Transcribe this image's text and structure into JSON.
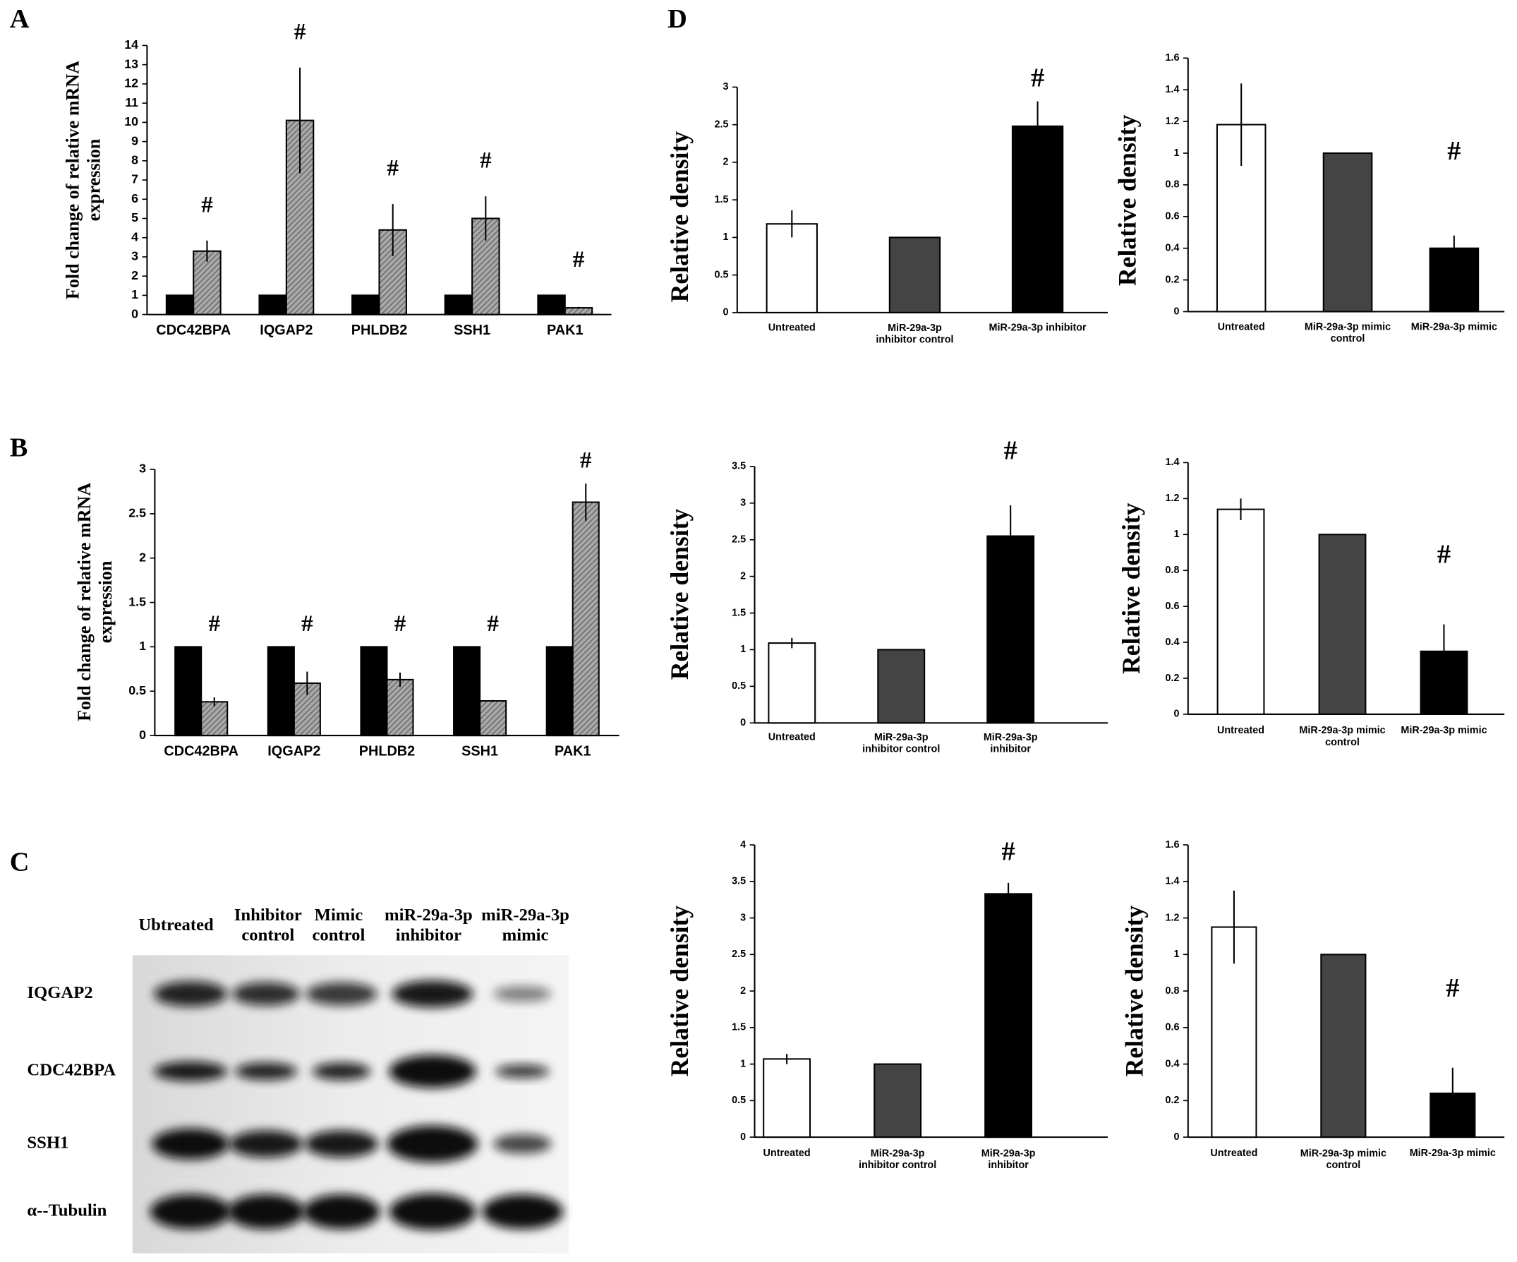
{
  "chart_data": [
    {
      "type": "bar",
      "panel_label": "A",
      "y_label": "Fold change of relative mRNA\nexpression",
      "categories": [
        "CDC42BPA",
        "IQGAP2",
        "PHLDB2",
        "SSH1",
        "PAK1"
      ],
      "series": [
        {
          "color": "#000000",
          "values": [
            1,
            1,
            1,
            1,
            1
          ]
        },
        {
          "color": "#a8a8a8",
          "pattern": "hatch",
          "values": [
            3.3,
            10.1,
            4.4,
            5.0,
            0.35
          ],
          "errors": [
            0.55,
            2.75,
            1.35,
            1.15,
            0.05
          ]
        }
      ],
      "annotations": [
        "#",
        "#",
        "#",
        "#",
        "#"
      ],
      "ylim": [
        0,
        14
      ],
      "yticks": [
        0,
        1,
        2,
        3,
        4,
        5,
        6,
        7,
        8,
        9,
        10,
        11,
        12,
        13,
        14
      ]
    },
    {
      "type": "bar",
      "panel_label": "B",
      "y_label": "Fold change of relative mRNA\nexpression",
      "categories": [
        "CDC42BPA",
        "IQGAP2",
        "PHLDB2",
        "SSH1",
        "PAK1"
      ],
      "series": [
        {
          "color": "#000000",
          "values": [
            1,
            1,
            1,
            1,
            1
          ]
        },
        {
          "color": "#a8a8a8",
          "pattern": "hatch",
          "values": [
            0.38,
            0.59,
            0.63,
            0.39,
            2.63
          ],
          "errors": [
            0.05,
            0.13,
            0.08,
            0.01,
            0.21
          ]
        }
      ],
      "annotations": [
        "#",
        "#",
        "#",
        "#",
        "#"
      ],
      "ylim": [
        0,
        3
      ],
      "yticks": [
        0,
        0.5,
        1,
        1.5,
        2,
        2.5,
        3
      ]
    },
    {
      "type": "bar",
      "panel_label": "D",
      "y_label": "Relative density",
      "categories": [
        "Untreated",
        "MiR-29a-3p\ninhibitor control",
        "MiR-29a-3p inhibitor"
      ],
      "values": [
        1.18,
        1,
        2.48
      ],
      "errors": [
        0.18,
        null,
        0.33
      ],
      "colors": [
        "#ffffff",
        "#444444",
        "#000000"
      ],
      "annotations": [
        null,
        null,
        "#"
      ],
      "ylim": [
        0,
        3
      ],
      "yticks": [
        0,
        0.5,
        1,
        1.5,
        2,
        2.5,
        3
      ]
    },
    {
      "type": "bar",
      "y_label": "Relative density",
      "categories": [
        "Untreated",
        "MiR-29a-3p mimic\ncontrol",
        "MiR-29a-3p mimic"
      ],
      "values": [
        1.18,
        1,
        0.4
      ],
      "errors": [
        0.26,
        null,
        0.08
      ],
      "colors": [
        "#ffffff",
        "#444444",
        "#000000"
      ],
      "annotations": [
        null,
        null,
        "#"
      ],
      "ylim": [
        0,
        1.6
      ],
      "yticks": [
        0,
        0.2,
        0.4,
        0.6,
        0.8,
        1,
        1.2,
        1.4,
        1.6
      ]
    },
    {
      "type": "bar",
      "y_label": "Relative density",
      "categories": [
        "Untreated",
        "MiR-29a-3p\ninhibitor control",
        "MiR-29a-3p\ninhibitor"
      ],
      "values": [
        1.09,
        1,
        2.55
      ],
      "errors": [
        0.07,
        null,
        0.42
      ],
      "colors": [
        "#ffffff",
        "#444444",
        "#000000"
      ],
      "annotations": [
        null,
        null,
        "#"
      ],
      "ylim": [
        0,
        3.5
      ],
      "yticks": [
        0,
        0.5,
        1,
        1.5,
        2,
        2.5,
        3,
        3.5
      ]
    },
    {
      "type": "bar",
      "y_label": "Relative density",
      "categories": [
        "Untreated",
        "MiR-29a-3p mimic\ncontrol",
        "MiR-29a-3p mimic"
      ],
      "values": [
        1.14,
        1,
        0.35
      ],
      "errors": [
        0.06,
        null,
        0.15
      ],
      "colors": [
        "#ffffff",
        "#444444",
        "#000000"
      ],
      "annotations": [
        null,
        null,
        "#"
      ],
      "ylim": [
        0,
        1.4
      ],
      "yticks": [
        0,
        0.2,
        0.4,
        0.6,
        0.8,
        1,
        1.2,
        1.4
      ]
    },
    {
      "type": "bar",
      "y_label": "Relative density",
      "categories": [
        "Untreated",
        "MiR-29a-3p\ninhibitor control",
        "MiR-29a-3p\ninhibitor"
      ],
      "values": [
        1.07,
        1,
        3.33
      ],
      "errors": [
        0.07,
        null,
        0.15
      ],
      "colors": [
        "#ffffff",
        "#444444",
        "#000000"
      ],
      "annotations": [
        null,
        null,
        "#"
      ],
      "ylim": [
        0,
        4
      ],
      "yticks": [
        0,
        0.5,
        1,
        1.5,
        2,
        2.5,
        3,
        3.5,
        4
      ]
    },
    {
      "type": "bar",
      "y_label": "Relative density",
      "categories": [
        "Untreated",
        "MiR-29a-3p mimic\ncontrol",
        "MiR-29a-3p mimic"
      ],
      "values": [
        1.15,
        1,
        0.24
      ],
      "errors": [
        0.2,
        null,
        0.14
      ],
      "colors": [
        "#ffffff",
        "#444444",
        "#000000"
      ],
      "annotations": [
        null,
        null,
        "#"
      ],
      "ylim": [
        0,
        1.6
      ],
      "yticks": [
        0,
        0.2,
        0.4,
        0.6,
        0.8,
        1,
        1.2,
        1.4,
        1.6
      ]
    }
  ],
  "blot": {
    "panel_label": "C",
    "columns": [
      "Ubtreated",
      "Inhibitor\ncontrol",
      "Mimic\ncontrol",
      "miR-29a-3p\ninhibitor",
      "miR-29a-3p\nmimic"
    ],
    "rows": [
      "IQGAP2",
      "CDC42BPA",
      "SSH1",
      "α--Tubulin"
    ]
  }
}
